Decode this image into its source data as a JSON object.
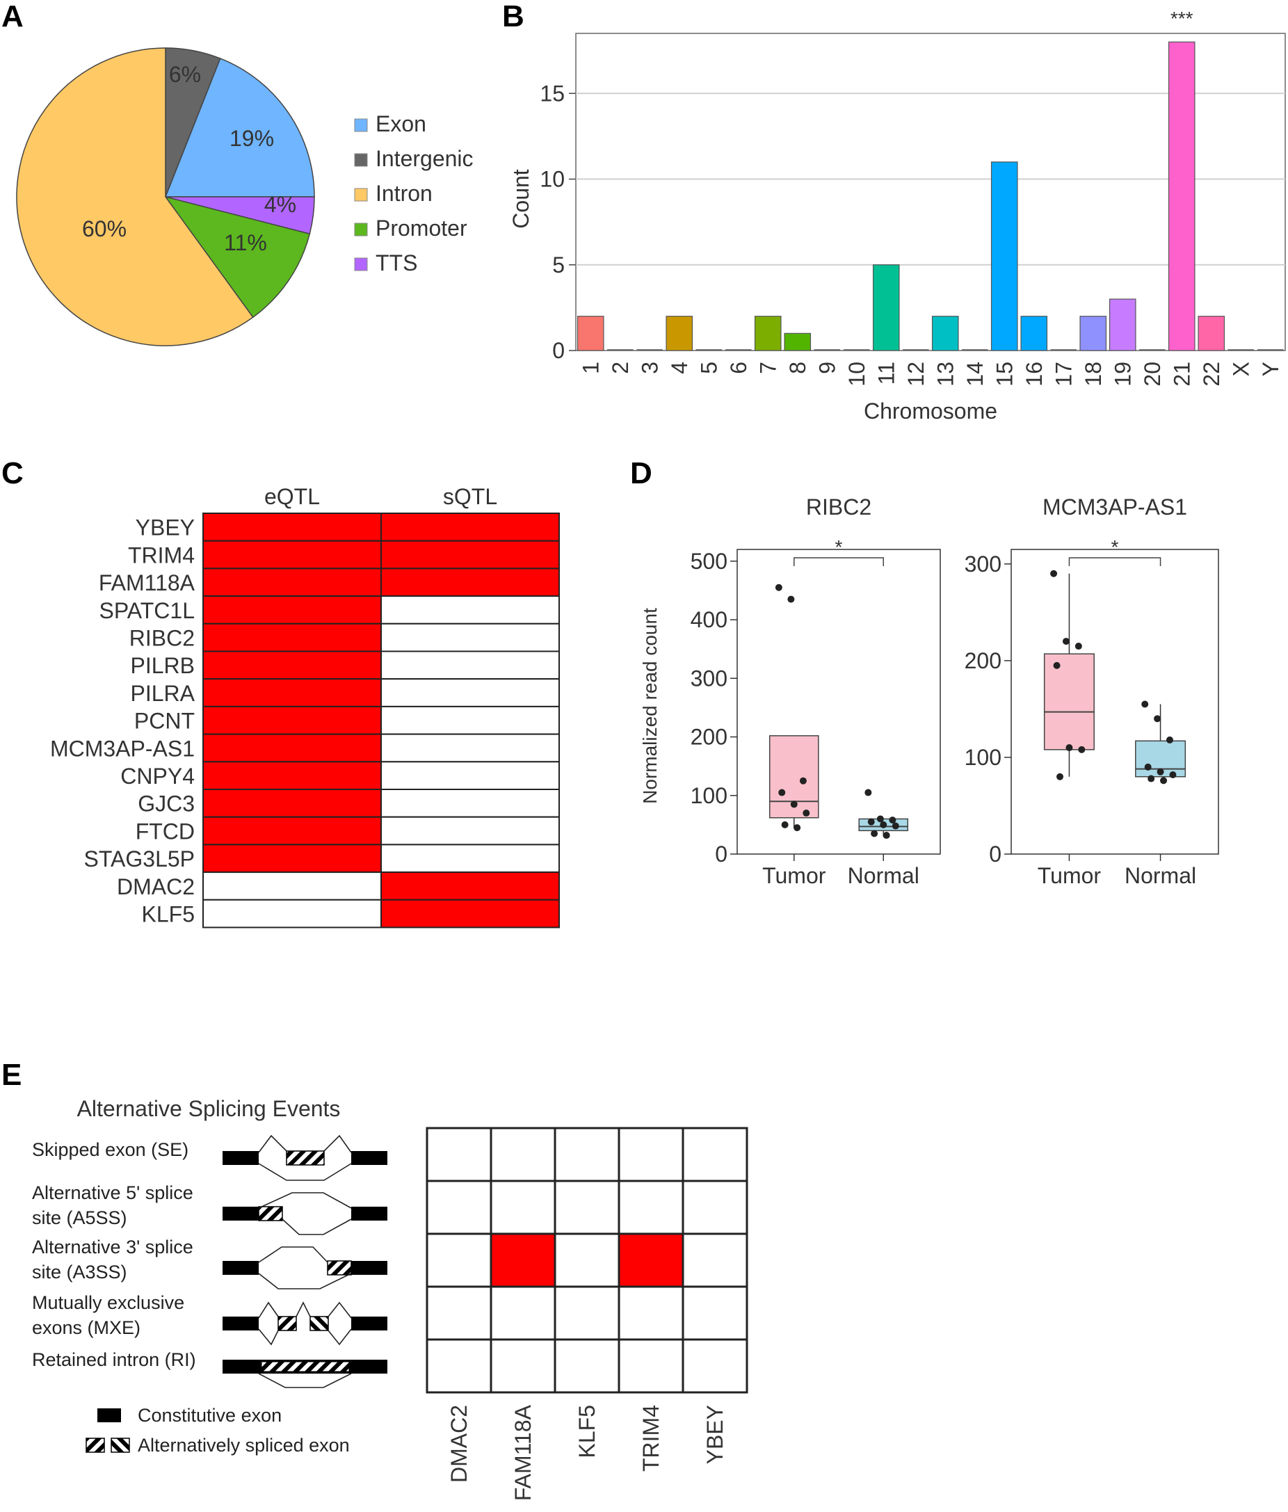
{
  "panels": {
    "A": "A",
    "B": "B",
    "C": "C",
    "D": "D",
    "E": "E"
  },
  "chart_data": [
    {
      "id": "A",
      "type": "pie",
      "labels": [
        "Exon",
        "Intergenic",
        "Intron",
        "Promoter",
        "TTS"
      ],
      "values": [
        19,
        6,
        60,
        11,
        4
      ],
      "slice_labels": [
        "19%",
        "6%",
        "60%",
        "11%",
        "4%"
      ],
      "colors": [
        "#6fb5ff",
        "#666666",
        "#ffc966",
        "#5cb81e",
        "#b266ff"
      ],
      "legend_position": "right"
    },
    {
      "id": "B",
      "type": "bar",
      "title": "",
      "xlabel": "Chromosome",
      "ylabel": "Count",
      "ylim": [
        0,
        18.5
      ],
      "yticks": [
        0,
        5,
        10,
        15
      ],
      "categories": [
        "1",
        "2",
        "3",
        "4",
        "5",
        "6",
        "7",
        "8",
        "9",
        "10",
        "11",
        "12",
        "13",
        "14",
        "15",
        "16",
        "17",
        "18",
        "19",
        "20",
        "21",
        "22",
        "X",
        "Y"
      ],
      "values": [
        2,
        0,
        0,
        2,
        0,
        0,
        2,
        1,
        0,
        0,
        5,
        0,
        2,
        0,
        11,
        2,
        0,
        2,
        3,
        0,
        18,
        2,
        0,
        0
      ],
      "colors": [
        "#f8766d",
        "#f8766d",
        "#f8766d",
        "#c99800",
        "#c99800",
        "#c99800",
        "#7cae00",
        "#53b400",
        "#53b400",
        "#00c094",
        "#00c094",
        "#00c094",
        "#00bfc4",
        "#00bfc4",
        "#00a9ff",
        "#00a9ff",
        "#8f91ff",
        "#8f91ff",
        "#c77cff",
        "#c77cff",
        "#ff61cc",
        "#ff66a8",
        "#ff66a8",
        "#ff66a8"
      ],
      "annotations": [
        {
          "category": "21",
          "text": "***"
        }
      ],
      "grid": true
    },
    {
      "id": "C",
      "type": "heatmap",
      "columns": [
        "eQTL",
        "sQTL"
      ],
      "rows": [
        "YBEY",
        "TRIM4",
        "FAM118A",
        "SPATC1L",
        "RIBC2",
        "PILRB",
        "PILRA",
        "PCNT",
        "MCM3AP-AS1",
        "CNPY4",
        "GJC3",
        "FTCD",
        "STAG3L5P",
        "DMAC2",
        "KLF5"
      ],
      "matrix": [
        [
          1,
          1
        ],
        [
          1,
          1
        ],
        [
          1,
          1
        ],
        [
          1,
          0
        ],
        [
          1,
          0
        ],
        [
          1,
          0
        ],
        [
          1,
          0
        ],
        [
          1,
          0
        ],
        [
          1,
          0
        ],
        [
          1,
          0
        ],
        [
          1,
          0
        ],
        [
          1,
          0
        ],
        [
          1,
          0
        ],
        [
          0,
          1
        ],
        [
          0,
          1
        ]
      ],
      "on_color": "#ff0000",
      "off_color": "#ffffff"
    },
    {
      "id": "D1",
      "type": "box",
      "title": "RIBC2",
      "ylabel": "Normalized read count",
      "ylim": [
        0,
        520
      ],
      "yticks": [
        0,
        100,
        200,
        300,
        400,
        500
      ],
      "categories": [
        "Tumor",
        "Normal"
      ],
      "boxes": [
        {
          "q1": 62,
          "median": 90,
          "q3": 202,
          "whisker_low": 45,
          "whisker_high": 202,
          "color": "#f9c0cb",
          "points": [
            455,
            435,
            125,
            105,
            85,
            70,
            50,
            45
          ]
        },
        {
          "q1": 40,
          "median": 47,
          "q3": 60,
          "whisker_low": 30,
          "whisker_high": 60,
          "color": "#a8d8e6",
          "points": [
            105,
            60,
            58,
            55,
            50,
            48,
            35,
            32
          ]
        }
      ],
      "significance": "*"
    },
    {
      "id": "D2",
      "type": "box",
      "title": "MCM3AP-AS1",
      "ylabel": "",
      "ylim": [
        0,
        315
      ],
      "yticks": [
        0,
        100,
        200,
        300
      ],
      "categories": [
        "Tumor",
        "Normal"
      ],
      "boxes": [
        {
          "q1": 108,
          "median": 147,
          "q3": 207,
          "whisker_low": 80,
          "whisker_high": 290,
          "color": "#f9c0cb",
          "points": [
            290,
            220,
            215,
            195,
            110,
            108,
            80
          ]
        },
        {
          "q1": 80,
          "median": 88,
          "q3": 117,
          "whisker_low": 80,
          "whisker_high": 155,
          "color": "#a8d8e6",
          "points": [
            155,
            140,
            118,
            90,
            85,
            82,
            78,
            76
          ]
        }
      ],
      "significance": "*"
    },
    {
      "id": "E",
      "type": "heatmap",
      "title": "Alternative Splicing Events",
      "rows": [
        "Skipped exon (SE)",
        "Alternative 5' splice site (A5SS)",
        "Alternative 3' splice site (A3SS)",
        "Mutually exclusive exons (MXE)",
        "Retained intron (RI)"
      ],
      "columns": [
        "DMAC2",
        "FAM118A",
        "KLF5",
        "TRIM4",
        "YBEY"
      ],
      "matrix": [
        [
          0,
          0,
          0,
          0,
          0
        ],
        [
          0,
          0,
          0,
          0,
          0
        ],
        [
          0,
          1,
          0,
          1,
          0
        ],
        [
          0,
          0,
          0,
          0,
          0
        ],
        [
          0,
          0,
          0,
          0,
          0
        ]
      ],
      "on_color": "#ff0000",
      "off_color": "#ffffff"
    }
  ],
  "panel_e": {
    "row_labels": [
      [
        "Skipped exon (SE)"
      ],
      [
        "Alternative 5' splice",
        "site (A5SS)"
      ],
      [
        "Alternative 3' splice",
        "site (A3SS)"
      ],
      [
        "Mutually exclusive",
        "exons (MXE)"
      ],
      [
        "Retained intron (RI)"
      ]
    ],
    "legend": {
      "constitutive": "Constitutive exon",
      "alternative": "Alternatively spliced exon"
    }
  }
}
